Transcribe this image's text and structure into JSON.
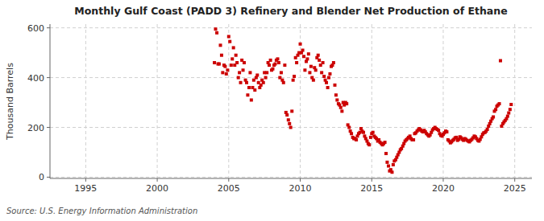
{
  "chart_data": {
    "type": "scatter",
    "title": "Monthly Gulf Coast (PADD 3) Refinery and Blender Net Production of Ethane",
    "ylabel": "Thousand Barrels",
    "source": "Source: U.S. Energy Information Administration",
    "color": "#CC0000",
    "marker": "square",
    "grid": true,
    "xlim": [
      1992.5,
      2026.2
    ],
    "ylim": [
      -5,
      615
    ],
    "xticks": [
      1995,
      2000,
      2005,
      2010,
      2015,
      2020,
      2025
    ],
    "yticks": [
      0,
      200,
      400,
      600
    ],
    "x": [
      2004.0,
      2004.08,
      2004.17,
      2004.25,
      2004.33,
      2004.42,
      2004.5,
      2004.58,
      2004.67,
      2004.75,
      2004.83,
      2004.92,
      2005.0,
      2005.08,
      2005.17,
      2005.25,
      2005.33,
      2005.42,
      2005.5,
      2005.58,
      2005.67,
      2005.75,
      2005.83,
      2005.92,
      2006.0,
      2006.08,
      2006.17,
      2006.25,
      2006.33,
      2006.42,
      2006.5,
      2006.58,
      2006.67,
      2006.75,
      2006.83,
      2006.92,
      2007.0,
      2007.08,
      2007.17,
      2007.25,
      2007.33,
      2007.42,
      2007.5,
      2007.58,
      2007.67,
      2007.75,
      2007.83,
      2007.92,
      2008.0,
      2008.08,
      2008.17,
      2008.25,
      2008.33,
      2008.42,
      2008.5,
      2008.58,
      2008.67,
      2008.75,
      2008.83,
      2008.92,
      2009.0,
      2009.08,
      2009.17,
      2009.25,
      2009.33,
      2009.42,
      2009.5,
      2009.58,
      2009.67,
      2009.75,
      2009.83,
      2009.92,
      2010.0,
      2010.08,
      2010.17,
      2010.25,
      2010.33,
      2010.42,
      2010.5,
      2010.58,
      2010.67,
      2010.75,
      2010.83,
      2010.92,
      2011.0,
      2011.08,
      2011.17,
      2011.25,
      2011.33,
      2011.42,
      2011.5,
      2011.58,
      2011.67,
      2011.75,
      2011.83,
      2011.92,
      2012.0,
      2012.08,
      2012.17,
      2012.25,
      2012.33,
      2012.42,
      2012.5,
      2012.58,
      2012.67,
      2012.75,
      2012.83,
      2012.92,
      2013.0,
      2013.08,
      2013.17,
      2013.25,
      2013.33,
      2013.42,
      2013.5,
      2013.58,
      2013.67,
      2013.75,
      2013.83,
      2013.92,
      2014.0,
      2014.08,
      2014.17,
      2014.25,
      2014.33,
      2014.42,
      2014.5,
      2014.58,
      2014.67,
      2014.75,
      2014.83,
      2014.92,
      2015.0,
      2015.08,
      2015.17,
      2015.25,
      2015.33,
      2015.42,
      2015.5,
      2015.58,
      2015.67,
      2015.75,
      2015.83,
      2015.92,
      2016.0,
      2016.08,
      2016.17,
      2016.25,
      2016.33,
      2016.42,
      2016.5,
      2016.58,
      2016.67,
      2016.75,
      2016.83,
      2016.92,
      2017.0,
      2017.08,
      2017.17,
      2017.25,
      2017.33,
      2017.42,
      2017.5,
      2017.58,
      2017.67,
      2017.75,
      2017.83,
      2017.92,
      2018.0,
      2018.08,
      2018.17,
      2018.25,
      2018.33,
      2018.42,
      2018.5,
      2018.58,
      2018.67,
      2018.75,
      2018.83,
      2018.92,
      2019.0,
      2019.08,
      2019.17,
      2019.25,
      2019.33,
      2019.42,
      2019.5,
      2019.58,
      2019.67,
      2019.75,
      2019.83,
      2019.92,
      2020.0,
      2020.08,
      2020.17,
      2020.25,
      2020.33,
      2020.42,
      2020.5,
      2020.58,
      2020.67,
      2020.75,
      2020.83,
      2020.92,
      2021.0,
      2021.08,
      2021.17,
      2021.25,
      2021.33,
      2021.42,
      2021.5,
      2021.58,
      2021.67,
      2021.75,
      2021.83,
      2021.92,
      2022.0,
      2022.08,
      2022.17,
      2022.25,
      2022.33,
      2022.42,
      2022.5,
      2022.58,
      2022.67,
      2022.75,
      2022.83,
      2022.92,
      2023.0,
      2023.08,
      2023.17,
      2023.25,
      2023.33,
      2023.42,
      2023.5,
      2023.58,
      2023.67,
      2023.75,
      2023.83,
      2023.92,
      2024.0,
      2024.08,
      2024.17,
      2024.25,
      2024.33,
      2024.42,
      2024.5,
      2024.58,
      2024.67,
      2024.75
    ],
    "values": [
      460,
      595,
      580,
      455,
      455,
      530,
      490,
      420,
      450,
      445,
      415,
      430,
      565,
      545,
      450,
      475,
      520,
      450,
      490,
      460,
      400,
      420,
      380,
      470,
      430,
      460,
      390,
      380,
      330,
      360,
      420,
      310,
      360,
      390,
      350,
      400,
      410,
      380,
      360,
      370,
      390,
      380,
      420,
      400,
      420,
      460,
      450,
      470,
      430,
      435,
      450,
      455,
      470,
      475,
      460,
      400,
      420,
      390,
      380,
      450,
      260,
      250,
      230,
      215,
      200,
      265,
      390,
      405,
      480,
      460,
      490,
      500,
      535,
      500,
      510,
      485,
      430,
      465,
      475,
      495,
      420,
      445,
      400,
      390,
      440,
      430,
      480,
      490,
      470,
      450,
      420,
      460,
      405,
      390,
      380,
      360,
      400,
      415,
      445,
      450,
      460,
      370,
      330,
      310,
      295,
      290,
      280,
      265,
      300,
      290,
      300,
      295,
      210,
      200,
      185,
      175,
      160,
      155,
      155,
      150,
      165,
      175,
      180,
      195,
      185,
      180,
      165,
      155,
      145,
      135,
      130,
      160,
      175,
      180,
      165,
      160,
      155,
      145,
      150,
      140,
      135,
      130,
      135,
      140,
      95,
      60,
      45,
      25,
      30,
      20,
      50,
      65,
      70,
      80,
      90,
      100,
      110,
      115,
      125,
      135,
      145,
      150,
      155,
      160,
      165,
      155,
      150,
      150,
      175,
      178,
      185,
      190,
      195,
      190,
      185,
      182,
      188,
      182,
      175,
      170,
      165,
      170,
      180,
      190,
      195,
      200,
      195,
      192,
      188,
      175,
      168,
      165,
      172,
      178,
      185,
      182,
      150,
      145,
      138,
      142,
      148,
      152,
      158,
      160,
      148,
      152,
      162,
      158,
      152,
      148,
      155,
      152,
      148,
      145,
      142,
      148,
      152,
      158,
      165,
      162,
      155,
      148,
      145,
      152,
      162,
      172,
      178,
      180,
      185,
      192,
      205,
      215,
      225,
      235,
      242,
      265,
      272,
      285,
      290,
      295,
      468,
      205,
      215,
      222,
      228,
      235,
      245,
      258,
      272,
      292
    ]
  }
}
